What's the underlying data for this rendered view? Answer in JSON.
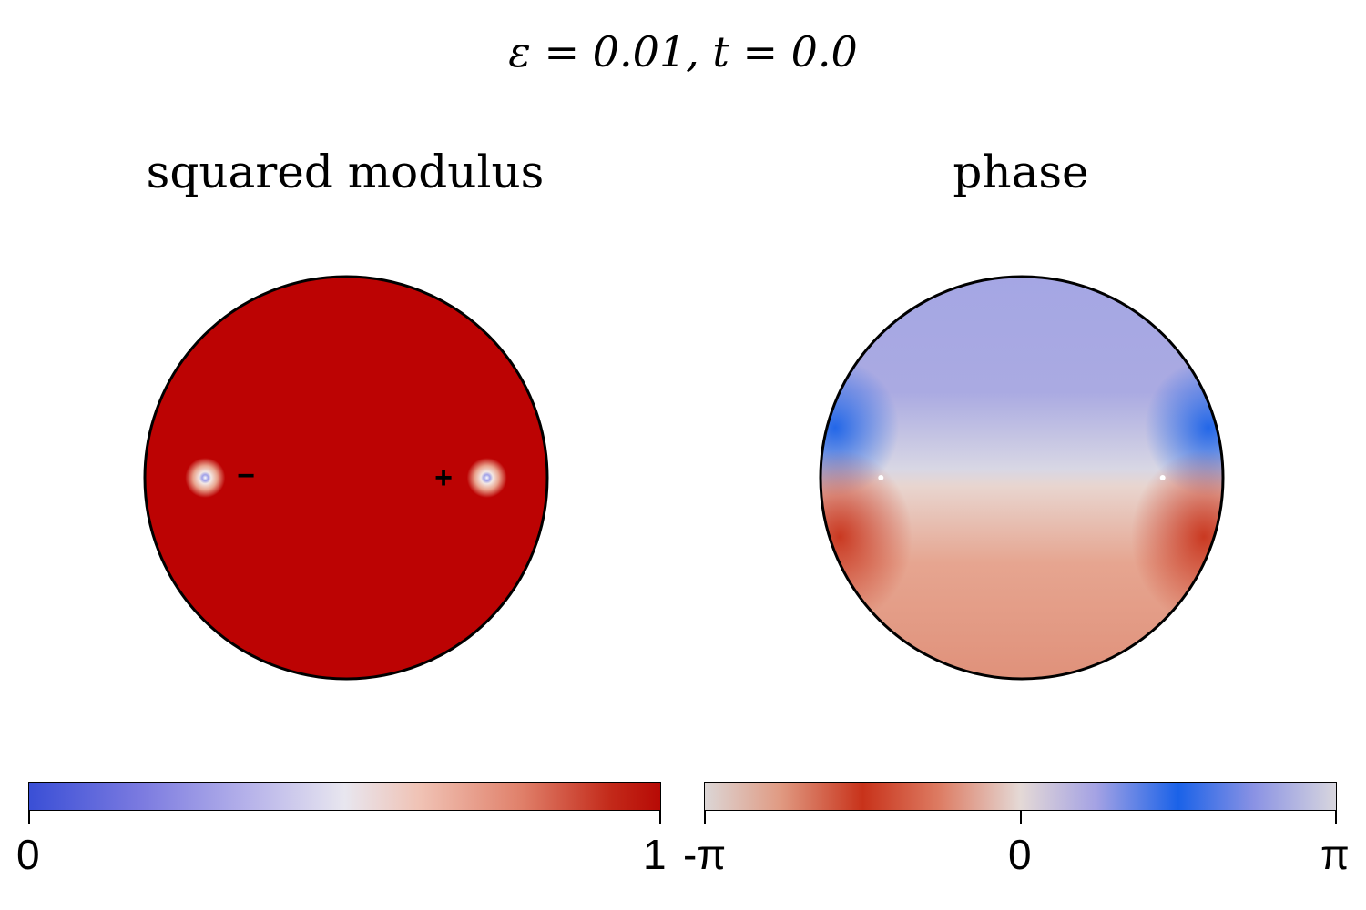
{
  "title": "ε = 0.01,    t = 0.0",
  "chart_data": [
    {
      "type": "heatmap",
      "title": "squared modulus",
      "domain": "disk",
      "colormap": [
        "#3a4fd6",
        "#e8e6ef",
        "#b70a05"
      ],
      "colorbar": {
        "min": 0,
        "max": 1,
        "tick_labels": [
          "0",
          "1"
        ]
      },
      "background_value": 1,
      "vortices": [
        {
          "x": -0.7,
          "y": 0.0,
          "sign": "−"
        },
        {
          "x": 0.7,
          "y": 0.0,
          "sign": "+"
        }
      ],
      "markers": [
        "−",
        "+"
      ]
    },
    {
      "type": "heatmap",
      "title": "phase",
      "domain": "disk",
      "colormap": [
        "#dcd6d6",
        "#c8321a",
        "#e4d9d6",
        "#1a62e8",
        "#d8d6de"
      ],
      "colorbar": {
        "min": "-π",
        "max": "π",
        "tick_labels": [
          "-π",
          "0",
          "π"
        ]
      },
      "vortices": [
        {
          "x": -0.7,
          "y": 0.0
        },
        {
          "x": 0.7,
          "y": 0.0
        }
      ]
    }
  ]
}
